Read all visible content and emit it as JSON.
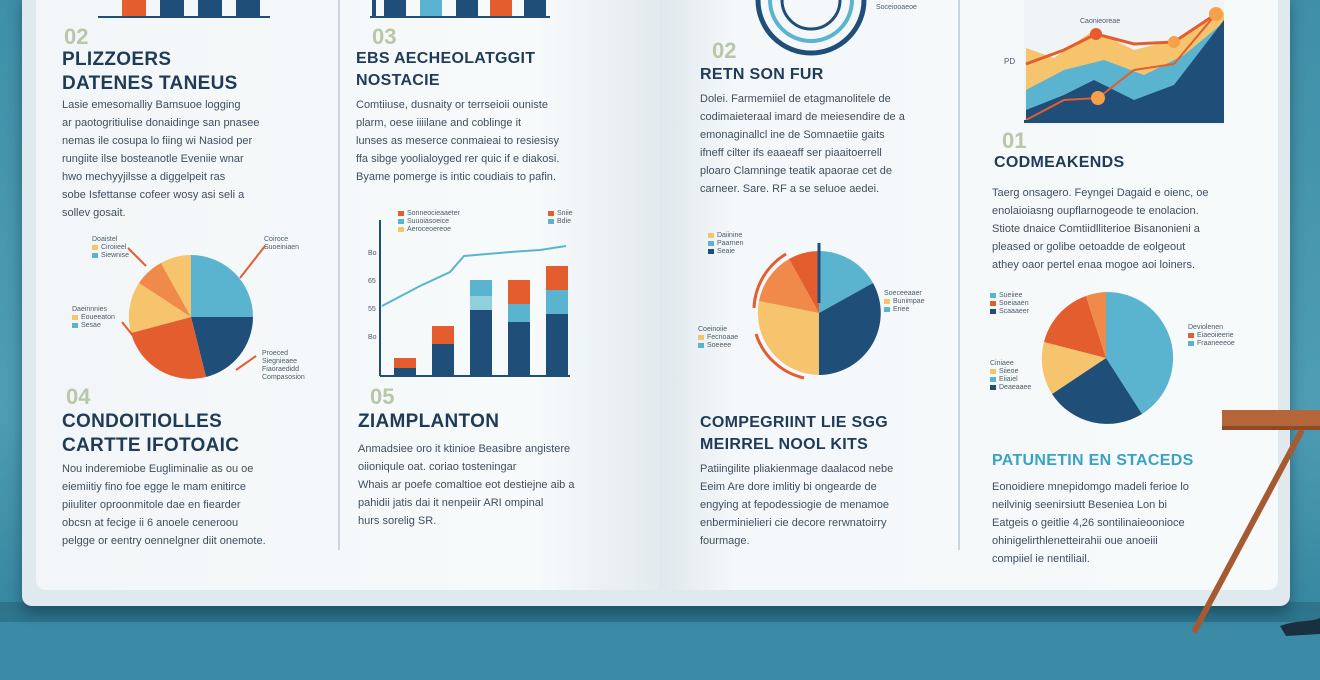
{
  "colors": {
    "navy": "#1f4e79",
    "teal": "#5ab4cf",
    "orange": "#e35d2f",
    "yellow": "#f6c46d",
    "lightteal": "#8fd0dc"
  },
  "sections": [
    {
      "number": "02",
      "title_lines": [
        "PLIZZOERS",
        "DATENES TANEUS"
      ],
      "body": [
        "Lasie emesomalliy Bamsuoe logging",
        "ar paotogritiulise donaidinge san pnasee",
        "nemas ile cosupa lo fiing wi Nasiod per",
        "rungiite ilse bosteanotle Eveniie wnar",
        "hwo mechyyjilsse a diggelpeit ras",
        "sobe Isfettanse cofeer wosy asi seli a",
        "sollev gosait."
      ]
    },
    {
      "number": "03",
      "title_lines": [
        "EBS AECHEOLATGGIT",
        "NOSTACIE"
      ],
      "body": [
        "Comtiiuse, dusnaity or terrseioii ouniste",
        "plarm, oese iiiilane and coblinge it",
        "lunses as meserce conmaieai to resiesisy",
        "ffa sibge yoolialoyged rer quic if e diakosi.",
        "Byame pomerge is intic coudiais to pafin."
      ]
    },
    {
      "number": "04",
      "title_lines": [
        "CONDOITIOLLES",
        "CARTTE IFOTOAIC"
      ],
      "body": [
        "Nou inderemiobe Eugliminalie as ou oe",
        "eiemiitiy fino foe egge le mam enitirce",
        "piiuliter oproonmitole dae en fiearder",
        "obcsn at fecige ii 6 anoele ceneroou",
        "pelgge or eentry oennelgner diit onemote."
      ]
    },
    {
      "number": "05",
      "title_lines": [
        "ZIAMPLANTON"
      ],
      "body": [
        "Anmadsiee oro it ktinioe Beasibre angistere",
        "oiioniqule oat. coriao tosteningar",
        "Whais ar poefe comaltioe eot destiejne aib a",
        "pahidii jatis dai it nenpeiir ARI ompinal",
        "hurs sorelig SR."
      ]
    },
    {
      "number": "02",
      "title_lines": [
        "RETN SON FUR"
      ],
      "body": [
        "Dolei. Farmemiiel de etagmanolitele de",
        "codimaieteraal imard de meiesendire de a",
        "emonaginallcl ine de Somnaetiie gaits",
        "ifneff cilter ifs eaaeaff ser piaaitoerrell",
        "ploaro Clamninge teatik apaorae cet de",
        "carneer. Sare. RF a se seluoe aedei."
      ]
    },
    {
      "number": "",
      "title_lines": [
        "COMPEGRIINT LIE SGG",
        "MEIRREL NOOL KITS"
      ],
      "body": [
        "Patiingilite pliakienmage daalacod nebe",
        "Eeim Are dore imlitiy bi ongearde de",
        "engying at fepodessiogie de menamoe",
        "enberminielieri cie decore rerwnatoirry",
        "fourmage."
      ]
    },
    {
      "number": "01",
      "title_lines": [
        "CODMEAKENDS"
      ],
      "body": [
        "Taerg onsagero. Feyngei Dagaid e oienc, oe",
        "enolaioiasng oupflarnogeode te enolacion.",
        "Stiote dnaice Comtiidlliterioe Bisanonieni a",
        "pleased or golibe oetoadde de eolgeout",
        "athey oaor pertel enaa mogoe aoi loiners."
      ]
    },
    {
      "number": "",
      "title_lines": [
        "PATUNETIN EN STACEDS"
      ],
      "body": [
        "Eonoidiere mnepidomgo madeli ferioe lo",
        "neilvinig seenirsiutt Beseniea Lon bi",
        "Eatgeis o geitlie 4,26 sontilinaieoonioce",
        "ohinigelirthlenetteirahii oue anoeiii",
        "compiiel ie nentiliail."
      ]
    }
  ],
  "charts": {
    "pie_left": {
      "type": "pie",
      "slices": [
        30,
        10,
        25,
        25,
        10
      ],
      "colors": [
        "teal",
        "navy",
        "orange",
        "yellow",
        "lightorange"
      ],
      "legend_left": [
        "Doaistel",
        "Ciroiieel",
        "Siewnise"
      ],
      "legend_left2": [
        "Daeinnnies",
        "Eoueeaton",
        "Sesae"
      ],
      "callout_tr": [
        "Coiroce",
        "Suoeiniaen"
      ],
      "callout_br": [
        "Proeced",
        "Siegnieaee",
        "Fiaoraedidd",
        "Compasosion"
      ]
    },
    "bar_mid": {
      "type": "bar",
      "values": [
        [
          4,
          1
        ],
        [
          10,
          4
        ],
        [
          17,
          4,
          3
        ],
        [
          16,
          5,
          4
        ],
        [
          22,
          5,
          4
        ]
      ],
      "line": [
        14,
        21,
        26,
        26,
        28,
        31
      ],
      "legend": [
        "Sonneocieaaeter",
        "Suuoiasoeice",
        "Aeroceoereoe"
      ],
      "legend_r": [
        "Sniie",
        "Bdie"
      ],
      "yticks": [
        "Bo",
        "65",
        "55",
        "Bo"
      ]
    },
    "pie_right1": {
      "type": "donut",
      "legend": [
        "Daiinine",
        "Paarnen",
        "Seaie"
      ],
      "legend2": [
        "Coeinoiie",
        "Fecnoaae",
        "Soeeee"
      ],
      "legend_r": [
        "Soeceeaaer",
        "Bunimpae",
        "Eriee"
      ]
    },
    "pie_right2": {
      "type": "pie",
      "legend": [
        "Sueiiee",
        "Soeiaaen",
        "Scaaaeer"
      ],
      "legend2": [
        "Deviolenen",
        "Eiaeoiieerie",
        "Fraaneeeoe"
      ],
      "legend3": [
        "Ciniaee",
        "Siieoe",
        "Eiiaiel",
        "Deaeaaee"
      ]
    },
    "area_top": {
      "type": "area",
      "legend": [
        "Caonieoreae",
        "Soceiooaeoe"
      ],
      "ytick": "PD"
    }
  }
}
